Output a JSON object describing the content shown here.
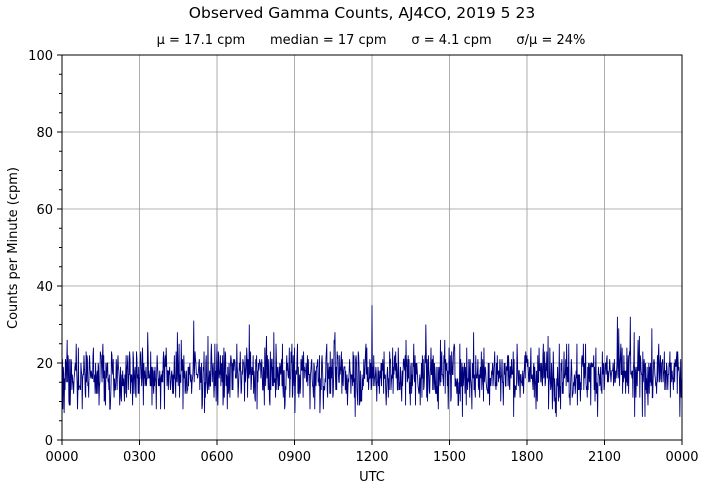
{
  "chart_data": {
    "type": "line",
    "title": "Observed Gamma Counts, AJ4CO, 2019 5 23",
    "subtitle": "μ = 17.1 cpm      median = 17 cpm      σ = 4.1 cpm      σ/μ = 24%",
    "xlabel": "UTC",
    "ylabel": "Counts per Minute (cpm)",
    "x_ticks": [
      "0000",
      "0300",
      "0600",
      "0900",
      "1200",
      "1500",
      "1800",
      "2100",
      "0000"
    ],
    "x_range_minutes": [
      0,
      1440
    ],
    "ylim": [
      0,
      100
    ],
    "y_ticks": [
      0,
      20,
      40,
      60,
      80,
      100
    ],
    "grid": true,
    "stats": {
      "mean_cpm": 17.1,
      "median_cpm": 17,
      "stdev_cpm": 4.1,
      "cv_percent": 24
    },
    "series": [
      {
        "color": "#00007f",
        "sampling": "one value per minute",
        "notable_points": [
          {
            "minute": 306,
            "cpm": 31
          },
          {
            "minute": 435,
            "cpm": 30
          },
          {
            "minute": 720,
            "cpm": 35
          },
          {
            "minute": 845,
            "cpm": 30
          },
          {
            "minute": 1290,
            "cpm": 32
          },
          {
            "minute": 1320,
            "cpm": 32
          },
          {
            "minute": 1330,
            "cpm": 6
          },
          {
            "minute": 930,
            "cpm": 6
          },
          {
            "minute": 5,
            "cpm": 7
          }
        ]
      }
    ]
  }
}
